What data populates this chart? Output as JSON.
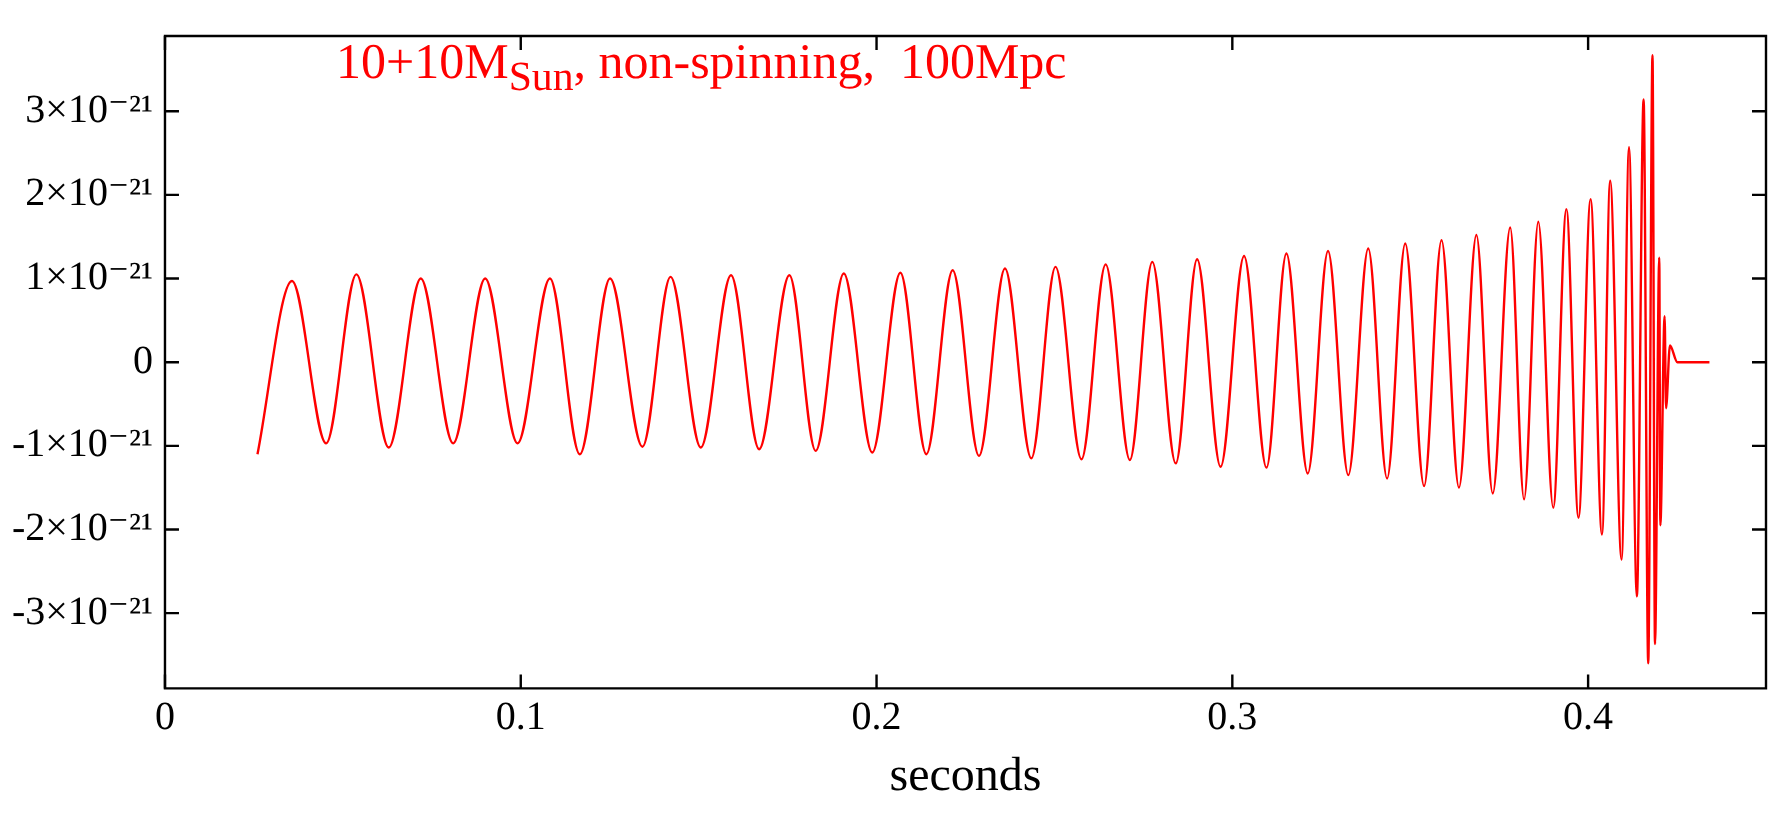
{
  "chart_data": {
    "type": "line",
    "title": "10+10M$_{Sun}$, non-spinning,  100Mpc",
    "xlabel": "seconds",
    "xlim": [
      0,
      0.45
    ],
    "xticks": [
      0,
      0.1,
      0.2,
      0.3,
      0.4
    ],
    "ylim": [
      -3.9e-21,
      3.9e-21
    ],
    "yticks": [
      {
        "value": -3e-21,
        "label": "-3×10⁻²¹"
      },
      {
        "value": -2e-21,
        "label": "-2×10⁻²¹"
      },
      {
        "value": -1e-21,
        "label": "-1×10⁻²¹"
      },
      0,
      {
        "value": 1e-21,
        "label": "1×10⁻²¹"
      },
      {
        "value": 2e-21,
        "label": "2×10⁻²¹"
      },
      {
        "value": 3e-21,
        "label": "3×10⁻²¹"
      }
    ],
    "marker": "none",
    "line_style": "solid",
    "legend": false,
    "series": [
      {
        "color": "#ff0000",
        "x": [
          0.026,
          0.0357,
          0.0453,
          0.0538,
          0.0629,
          0.0719,
          0.081,
          0.09,
          0.0991,
          0.1082,
          0.1166,
          0.1251,
          0.1342,
          0.1421,
          0.1506,
          0.1591,
          0.167,
          0.1755,
          0.1829,
          0.1908,
          0.1988,
          0.2067,
          0.214,
          0.2214,
          0.2288,
          0.2361,
          0.2435,
          0.2503,
          0.2576,
          0.2644,
          0.2712,
          0.2775,
          0.2841,
          0.2901,
          0.2967,
          0.3033,
          0.3096,
          0.3152,
          0.3212,
          0.3269,
          0.3326,
          0.3382,
          0.3435,
          0.3486,
          0.3539,
          0.3588,
          0.3637,
          0.3686,
          0.3732,
          0.3781,
          0.382,
          0.386,
          0.3902,
          0.3939,
          0.3973,
          0.4007,
          0.4039,
          0.4062,
          0.4094,
          0.4115,
          0.4137,
          0.4156,
          0.4169,
          0.4181,
          0.4188,
          0.42,
          0.4203,
          0.4215,
          0.4219,
          0.423,
          0.4251,
          0.4341
        ],
        "values": [
          -1.1e-21,
          9.7e-22,
          -9.7e-22,
          1.05e-21,
          -1.02e-21,
          1e-21,
          -9.7e-22,
          1e-21,
          -9.7e-22,
          1e-21,
          -1.1e-21,
          1e-21,
          -1.01e-21,
          1.02e-21,
          -1.02e-21,
          1.04e-21,
          -1.04e-21,
          1.04e-21,
          -1.06e-21,
          1.06e-21,
          -1.08e-21,
          1.07e-21,
          -1.1e-21,
          1.1e-21,
          -1.12e-21,
          1.12e-21,
          -1.15e-21,
          1.14e-21,
          -1.16e-21,
          1.17e-21,
          -1.17e-21,
          1.2e-21,
          -1.21e-21,
          1.23e-21,
          -1.25e-21,
          1.27e-21,
          -1.26e-21,
          1.3e-21,
          -1.33e-21,
          1.33e-21,
          -1.35e-21,
          1.36e-21,
          -1.39e-21,
          1.42e-21,
          -1.48e-21,
          1.46e-21,
          -1.5e-21,
          1.52e-21,
          -1.57e-21,
          1.61e-21,
          -1.64e-21,
          1.68e-21,
          -1.74e-21,
          1.83e-21,
          -1.86e-21,
          1.95e-21,
          -2.06e-21,
          2.17e-21,
          -2.36e-21,
          2.57e-21,
          -2.8e-21,
          3.14e-21,
          -3.6e-21,
          3.67e-21,
          -3.37e-21,
          1.25e-21,
          -1.95e-21,
          5.5e-22,
          -5.5e-22,
          2e-22,
          0,
          0
        ]
      }
    ]
  }
}
